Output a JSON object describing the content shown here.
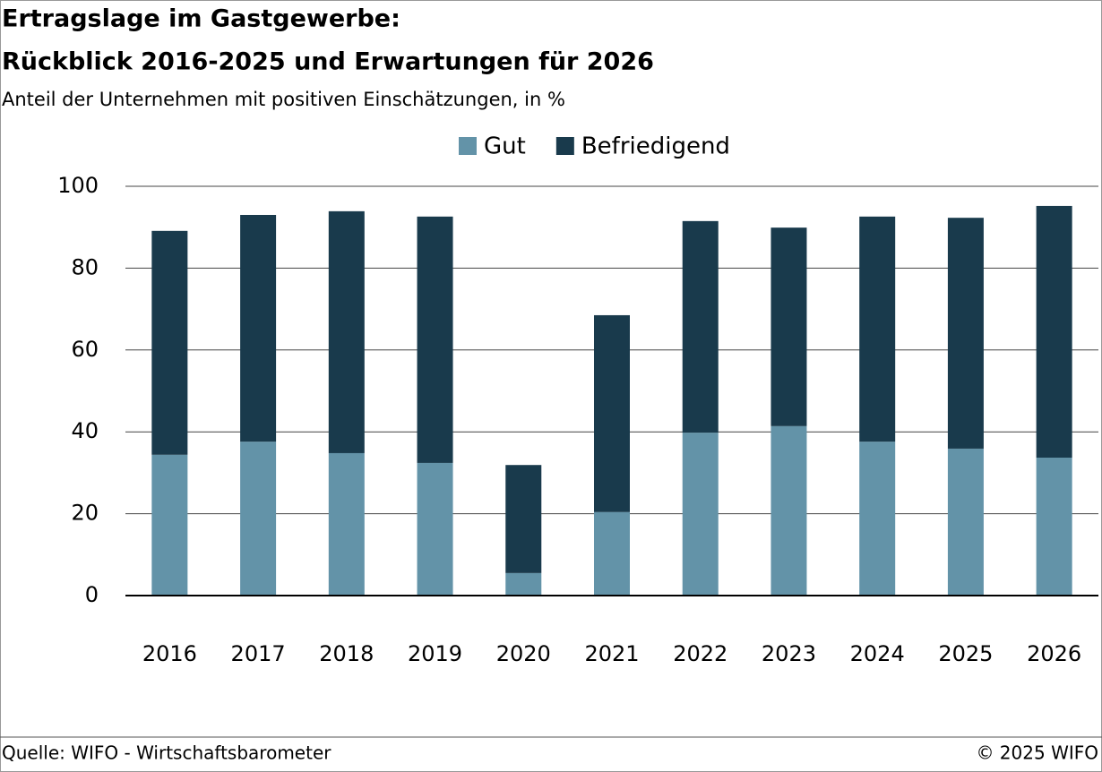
{
  "chart_data": {
    "type": "stacked-bar",
    "title": "Ertragslage im Gastgewerbe:",
    "title_line2": "Rückblick 2016-2025 und Erwartungen für 2026",
    "subtitle": "Anteil der Unternehmen mit positiven Einschätzungen, in %",
    "categories": [
      "2016",
      "2017",
      "2018",
      "2019",
      "2020",
      "2021",
      "2022",
      "2023",
      "2024",
      "2025",
      "2026"
    ],
    "series": [
      {
        "name": "Gut",
        "color": "#6393a8",
        "values": [
          34.4,
          37.6,
          34.8,
          32.4,
          5.5,
          20.4,
          39.8,
          41.4,
          37.6,
          35.9,
          33.7
        ]
      },
      {
        "name": "Befriedigend",
        "color": "#193a4c",
        "values": [
          54.7,
          55.4,
          59.1,
          60.2,
          26.4,
          48.1,
          51.7,
          48.5,
          55.0,
          56.4,
          61.5
        ]
      }
    ],
    "ylim": [
      0,
      100
    ],
    "yticks": [
      0,
      20,
      40,
      60,
      80,
      100
    ],
    "grid": true,
    "legend": "top",
    "source": "Quelle: WIFO - Wirtschaftsbarometer",
    "copyright": "© 2025 WIFO"
  }
}
